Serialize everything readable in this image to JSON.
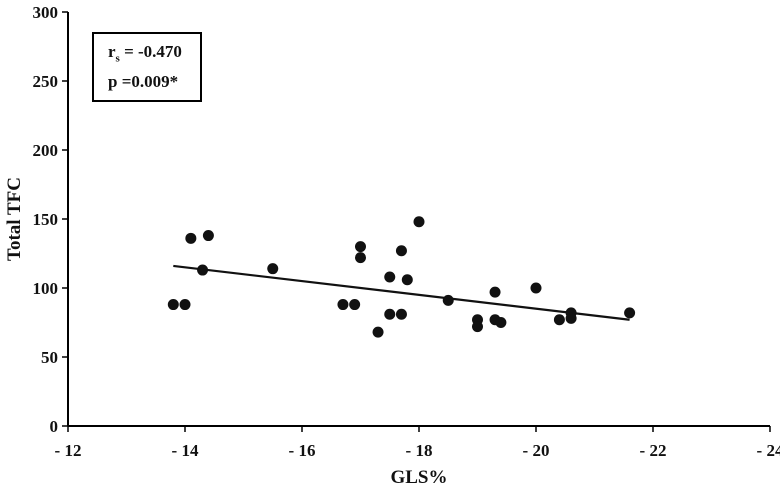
{
  "chart_data": {
    "type": "scatter",
    "xlabel": "GLS%",
    "ylabel": "Total TFC",
    "xlim": [
      -12,
      -24
    ],
    "ylim": [
      0,
      300
    ],
    "x_ticks": [
      -12,
      -14,
      -16,
      -18,
      -20,
      -22,
      -24
    ],
    "x_tick_labels": [
      "- 12",
      "- 14",
      "- 16",
      "- 18",
      "- 20",
      "- 22",
      "- 24"
    ],
    "y_ticks": [
      0,
      50,
      100,
      150,
      200,
      250,
      300
    ],
    "grid": false,
    "legend": "none",
    "colors": {
      "points": "#111111",
      "line": "#111111",
      "axis": "#000000"
    },
    "annotation": {
      "r_label": "r",
      "r_sub": "s",
      "r_value": " = -0.470",
      "p_line": "p =0.009*"
    },
    "trendline": {
      "x": [
        -13.8,
        -21.6
      ],
      "y": [
        116,
        77
      ]
    },
    "points": [
      {
        "x": -13.8,
        "y": 88
      },
      {
        "x": -14.0,
        "y": 88
      },
      {
        "x": -14.1,
        "y": 136
      },
      {
        "x": -14.3,
        "y": 113
      },
      {
        "x": -14.4,
        "y": 138
      },
      {
        "x": -15.5,
        "y": 114
      },
      {
        "x": -16.7,
        "y": 88
      },
      {
        "x": -16.9,
        "y": 88
      },
      {
        "x": -17.0,
        "y": 130
      },
      {
        "x": -17.0,
        "y": 122
      },
      {
        "x": -17.3,
        "y": 68
      },
      {
        "x": -17.5,
        "y": 108
      },
      {
        "x": -17.5,
        "y": 81
      },
      {
        "x": -17.7,
        "y": 127
      },
      {
        "x": -17.7,
        "y": 81
      },
      {
        "x": -17.8,
        "y": 106
      },
      {
        "x": -18.0,
        "y": 148
      },
      {
        "x": -18.5,
        "y": 91
      },
      {
        "x": -19.0,
        "y": 77
      },
      {
        "x": -19.0,
        "y": 72
      },
      {
        "x": -19.3,
        "y": 97
      },
      {
        "x": -19.3,
        "y": 77
      },
      {
        "x": -19.4,
        "y": 75
      },
      {
        "x": -20.0,
        "y": 100
      },
      {
        "x": -20.4,
        "y": 77
      },
      {
        "x": -20.6,
        "y": 82
      },
      {
        "x": -20.6,
        "y": 78
      },
      {
        "x": -21.6,
        "y": 82
      }
    ]
  }
}
